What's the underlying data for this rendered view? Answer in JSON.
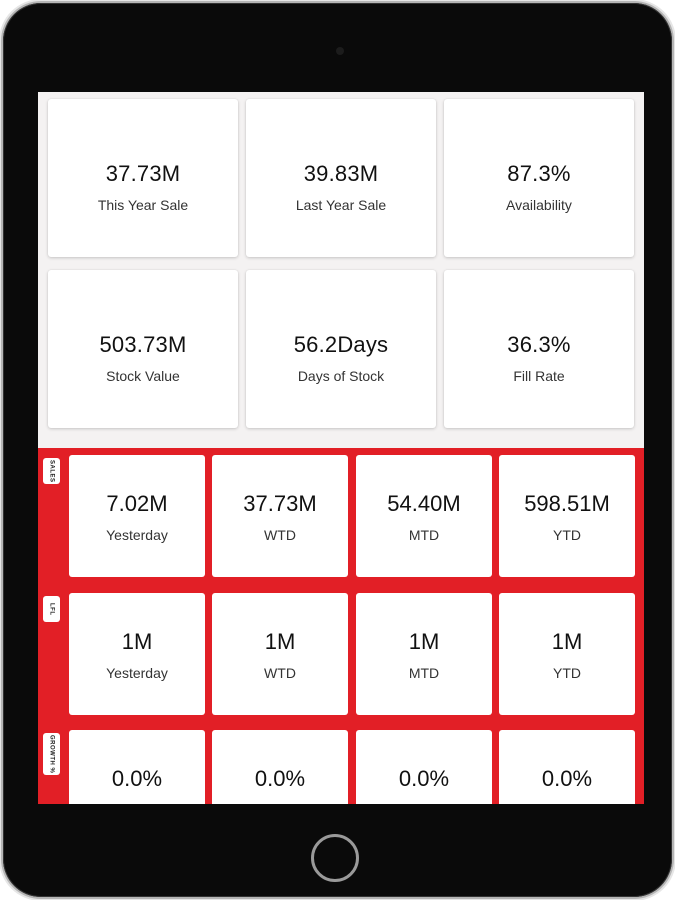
{
  "kpis": [
    {
      "value": "37.73M",
      "label": "This Year Sale"
    },
    {
      "value": "39.83M",
      "label": "Last Year Sale"
    },
    {
      "value": "87.3%",
      "label": "Availability"
    },
    {
      "value": "503.73M",
      "label": "Stock Value"
    },
    {
      "value": "56.2Days",
      "label": "Days of Stock"
    },
    {
      "value": "36.3%",
      "label": "Fill Rate"
    }
  ],
  "sections": [
    {
      "tag": "SALES",
      "cards": [
        {
          "value": "7.02M",
          "label": "Yesterday"
        },
        {
          "value": "37.73M",
          "label": "WTD"
        },
        {
          "value": "54.40M",
          "label": "MTD"
        },
        {
          "value": "598.51M",
          "label": "YTD"
        }
      ]
    },
    {
      "tag": "LFL",
      "cards": [
        {
          "value": "1M",
          "label": "Yesterday"
        },
        {
          "value": "1M",
          "label": "WTD"
        },
        {
          "value": "1M",
          "label": "MTD"
        },
        {
          "value": "1M",
          "label": "YTD"
        }
      ]
    },
    {
      "tag": "GROWTH %",
      "cards": [
        {
          "value": "0.0%",
          "label": ""
        },
        {
          "value": "0.0%",
          "label": ""
        },
        {
          "value": "0.0%",
          "label": ""
        },
        {
          "value": "0.0%",
          "label": ""
        }
      ]
    }
  ],
  "colors": {
    "accent": "#e21f26",
    "card": "#ffffff",
    "screen_bg": "#f4f2f2",
    "device": "#0a0a0a"
  }
}
